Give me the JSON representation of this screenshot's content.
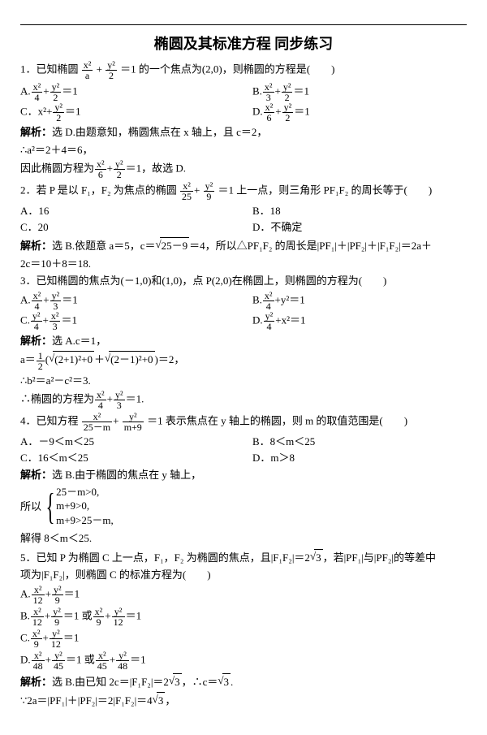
{
  "title": "椭圆及其标准方程  同步练习",
  "q1": {
    "stem_pre": "1．已知椭圆",
    "stem_frac1n": "x²",
    "stem_frac1d": "a",
    "stem_plus": "+",
    "stem_frac2n": "y²",
    "stem_frac2d": "2",
    "stem_post": "＝1 的一个焦点为(2,0)，则椭圆的方程是(　　)",
    "A_pre": "A.",
    "A_f1n": "x²",
    "A_f1d": "4",
    "A_f2n": "y²",
    "A_f2d": "2",
    "A_post": "＝1",
    "B_pre": "B.",
    "B_f1n": "x²",
    "B_f1d": "3",
    "B_f2n": "y²",
    "B_f2d": "2",
    "B_post": "＝1",
    "C_pre": "C．x²+",
    "C_f2n": "y²",
    "C_f2d": "2",
    "C_post": "＝1",
    "D_pre": "D.",
    "D_f1n": "x²",
    "D_f1d": "6",
    "D_f2n": "y²",
    "D_f2d": "2",
    "D_post": "＝1",
    "ans_label": "解析：",
    "ans1": "选 D.由题意知，椭圆焦点在 x 轴上，且 c＝2，",
    "ans2": "∴a²＝2＋4＝6，",
    "ans3_pre": "因此椭圆方程为",
    "ans3_f1n": "x²",
    "ans3_f1d": "6",
    "ans3_f2n": "y²",
    "ans3_f2d": "2",
    "ans3_post": "＝1，故选 D."
  },
  "q2": {
    "stem_pre": "2．若 P 是以 F₁，F₂ 为焦点的椭圆",
    "f1n": "x²",
    "f1d": "25",
    "f2n": "y²",
    "f2d": "9",
    "stem_post": "＝1 上一点，则三角形 PF₁F₂ 的周长等于(　　)",
    "A": "A．16",
    "B": "B．18",
    "C": "C．20",
    "D": "D．不确定",
    "ans_label": "解析：",
    "ans1_pre": "选 B.依题意 a＝5，c＝",
    "ans1_sqrt": "25－9",
    "ans1_post": "＝4，所以△PF₁F₂ 的周长是|PF₁|＋|PF₂|＋|F₁F₂|＝2a＋",
    "ans2": "2c＝10＋8＝18."
  },
  "q3": {
    "stem": "3．已知椭圆的焦点为(－1,0)和(1,0)，点 P(2,0)在椭圆上，则椭圆的方程为(　　)",
    "A_pre": "A.",
    "A_f1n": "x²",
    "A_f1d": "4",
    "A_f2n": "y²",
    "A_f2d": "3",
    "A_post": "＝1",
    "B_pre": "B.",
    "B_f1n": "x²",
    "B_f1d": "4",
    "B_post": "+y²＝1",
    "C_pre": "C.",
    "C_f1n": "y²",
    "C_f1d": "4",
    "C_f2n": "x²",
    "C_f2d": "3",
    "C_post": "＝1",
    "D_pre": "D.",
    "D_f1n": "y²",
    "D_f1d": "4",
    "D_post": "+x²＝1",
    "ans_label": "解析：",
    "ans0": "选 A.c＝1，",
    "a_pre": "a＝",
    "a_f1n": "1",
    "a_f1d": "2",
    "a_par_l": "(",
    "a_s1": "(2+1)²+0",
    "a_plus": "＋",
    "a_s2": "(2－1)²+0",
    "a_par_r": ")",
    "a_post": "＝2，",
    "b2": "∴b²＝a²－c²＝3.",
    "eq_pre": "∴椭圆的方程为",
    "eq_f1n": "x²",
    "eq_f1d": "4",
    "eq_f2n": "y²",
    "eq_f2d": "3",
    "eq_post": "＝1."
  },
  "q4": {
    "stem_pre": "4．已知方程",
    "f1n": "x²",
    "f1d": "25－m",
    "f2n": "y²",
    "f2d": "m+9",
    "stem_post": "＝1 表示焦点在 y 轴上的椭圆，则 m 的取值范围是(　　)",
    "A": "A．－9＜m＜25",
    "B": "B．8＜m＜25",
    "C": "C．16＜m＜25",
    "D": "D．m＞8",
    "ans_label": "解析：",
    "ans0": "选 B.由于椭圆的焦点在 y 轴上，",
    "so": "所以",
    "c1": "25－m>0,",
    "c2": "m+9>0,",
    "c3": "m+9>25－m,",
    "res": "解得 8＜m＜25."
  },
  "q5": {
    "stem_pre": "5．已知 P 为椭圆 C 上一点，F₁，F₂ 为椭圆的焦点，且|F₁F₂|＝2",
    "sqrt3a": "3",
    "stem_mid": "，若|PF₁|与|PF₂|的等差中",
    "stem2": "项为|F₁F₂|，则椭圆 C 的标准方程为(　　)",
    "A_pre": "A.",
    "A_f1n": "x²",
    "A_f1d": "12",
    "A_f2n": "y²",
    "A_f2d": "9",
    "A_post": "＝1",
    "B_pre": "B.",
    "B1_f1n": "x²",
    "B1_f1d": "12",
    "B1_f2n": "y²",
    "B1_f2d": "9",
    "B_or": "＝1 或",
    "B2_f1n": "x²",
    "B2_f1d": "9",
    "B2_f2n": "y²",
    "B2_f2d": "12",
    "B_post": "＝1",
    "C_pre": "C.",
    "C_f1n": "x²",
    "C_f1d": "9",
    "C_f2n": "y²",
    "C_f2d": "12",
    "C_post": "＝1",
    "D_pre": "D.",
    "D1_f1n": "x²",
    "D1_f1d": "48",
    "D1_f2n": "y²",
    "D1_f2d": "45",
    "D_or": "＝1 或",
    "D2_f1n": "x²",
    "D2_f1d": "45",
    "D2_f2n": "y²",
    "D2_f2d": "48",
    "D_post": "＝1",
    "ans_label": "解析：",
    "ans1_pre": "选 B.由已知 2c＝|F₁F₂|＝2",
    "ans1_s": "3",
    "ans1_mid": "，∴c＝",
    "ans1_s2": "3",
    "ans1_post": ".",
    "ans2_pre": "∵2a＝|PF₁|＋|PF₂|＝2|F₁F₂|＝4",
    "ans2_s": "3",
    "ans2_post": "，"
  }
}
